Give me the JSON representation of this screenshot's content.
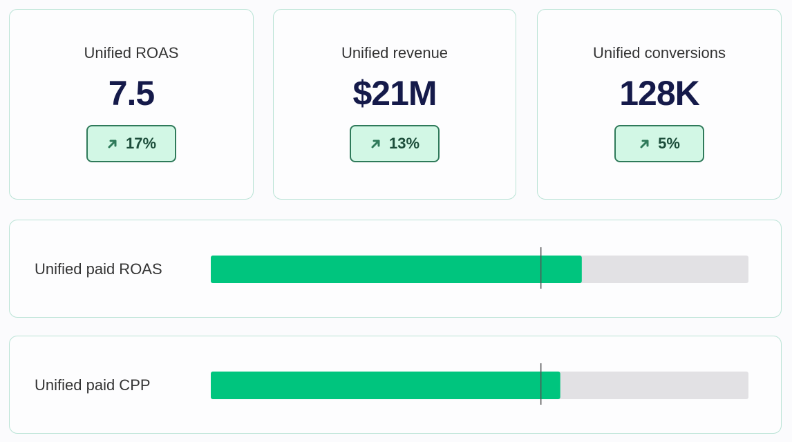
{
  "cards": [
    {
      "label": "Unified ROAS",
      "value": "7.5",
      "change": "17%"
    },
    {
      "label": "Unified revenue",
      "value": "$21M",
      "change": "13%"
    },
    {
      "label": "Unified conversions",
      "value": "128K",
      "change": "5%"
    }
  ],
  "bars": {
    "range": [
      0,
      100
    ],
    "fill_color": "#00c57e",
    "track_color": "#e2e1e4",
    "rows": [
      {
        "label": "Unified paid ROAS",
        "value": 69,
        "target": 61.4
      },
      {
        "label": "Unified paid CPP",
        "value": 65,
        "target": 61.4
      }
    ]
  }
}
